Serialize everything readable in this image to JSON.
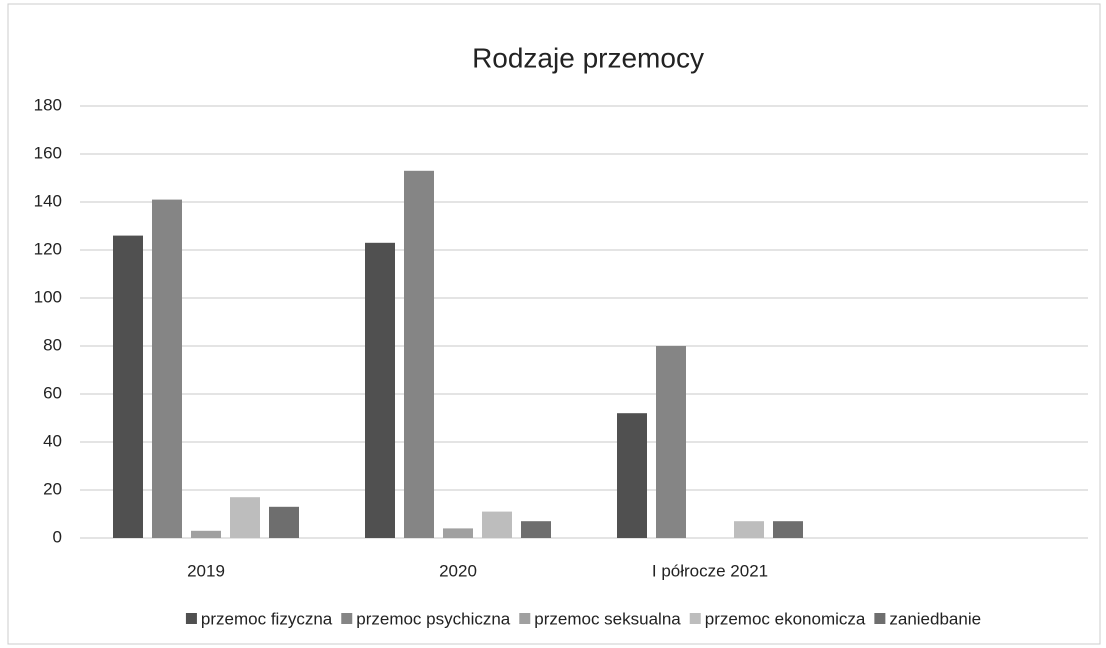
{
  "chart_data": {
    "type": "bar",
    "title": "Rodzaje przemocy",
    "categories": [
      "2019",
      "2020",
      "I półrocze 2021",
      null
    ],
    "series": [
      {
        "name": "przemoc fizyczna",
        "color": "#505050",
        "values": [
          126,
          123,
          52,
          null
        ]
      },
      {
        "name": "przemoc psychiczna",
        "color": "#858585",
        "values": [
          141,
          153,
          80,
          null
        ]
      },
      {
        "name": "przemoc seksualna",
        "color": "#a0a0a0",
        "values": [
          3,
          4,
          0,
          null
        ]
      },
      {
        "name": "przemoc ekonomicza",
        "color": "#bdbdbd",
        "values": [
          17,
          11,
          7,
          null
        ]
      },
      {
        "name": "zaniedbanie",
        "color": "#6e6e6e",
        "values": [
          13,
          7,
          7,
          null
        ]
      }
    ],
    "ylim": [
      0,
      180
    ],
    "yticks": [
      0,
      20,
      40,
      60,
      80,
      100,
      120,
      140,
      160,
      180
    ],
    "grid": true,
    "legend": "bottom"
  }
}
